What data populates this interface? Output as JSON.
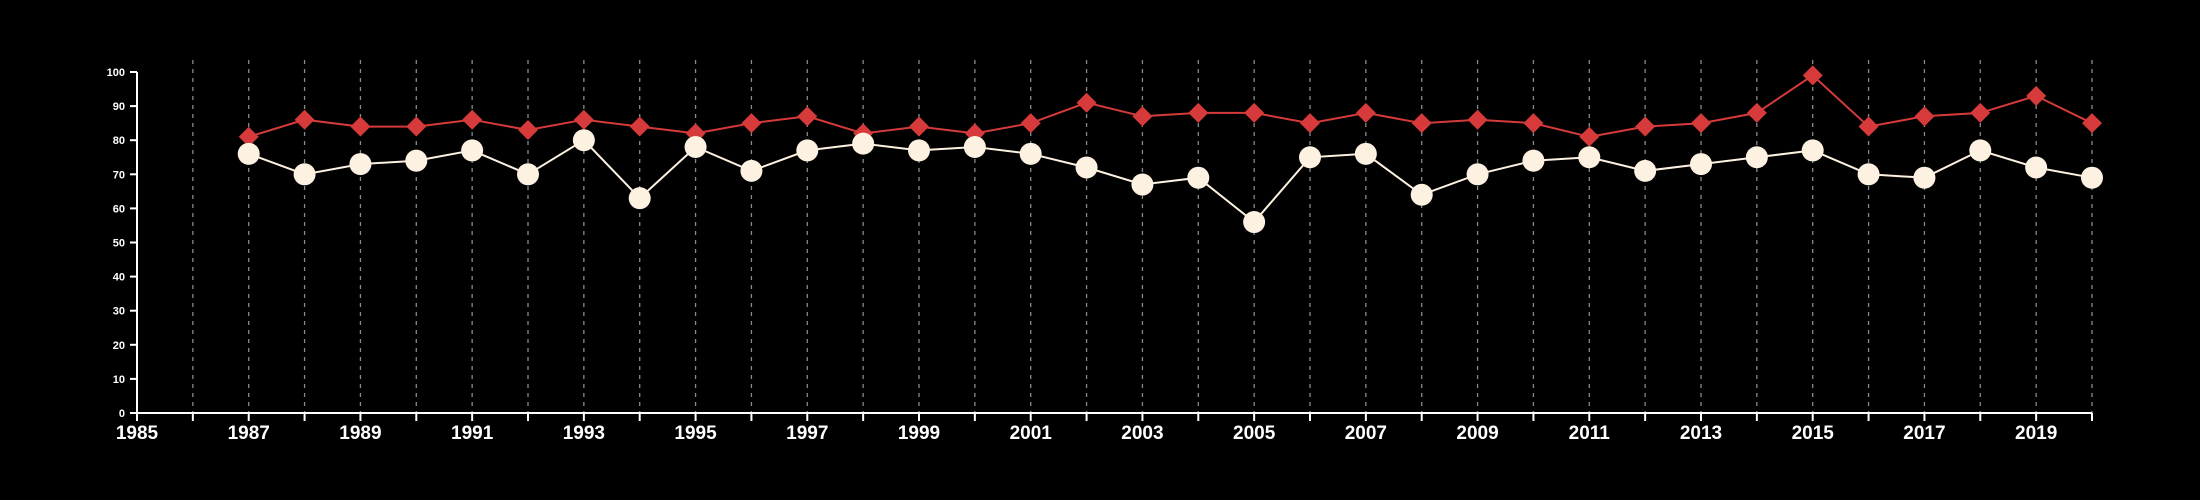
{
  "chart_data": {
    "type": "line",
    "title": "",
    "xlabel": "",
    "ylabel": "",
    "x": [
      1987,
      1988,
      1989,
      1990,
      1991,
      1992,
      1993,
      1994,
      1995,
      1996,
      1997,
      1998,
      1999,
      2000,
      2001,
      2002,
      2003,
      2004,
      2005,
      2006,
      2007,
      2008,
      2009,
      2010,
      2011,
      2012,
      2013,
      2014,
      2015,
      2016,
      2017,
      2018,
      2019,
      2020
    ],
    "series": [
      {
        "color": "#d63a3a",
        "marker": "diamond",
        "values": [
          81,
          86,
          84,
          84,
          86,
          83,
          86,
          84,
          82,
          85,
          87,
          82,
          84,
          82,
          85,
          91,
          87,
          88,
          88,
          85,
          88,
          85,
          86,
          85,
          81,
          84,
          85,
          88,
          99,
          84,
          87,
          88,
          93,
          85
        ]
      },
      {
        "color": "#fdf1e1",
        "marker": "circle",
        "values": [
          76,
          70,
          73,
          74,
          77,
          70,
          80,
          63,
          78,
          71,
          77,
          79,
          77,
          78,
          76,
          72,
          67,
          69,
          56,
          75,
          76,
          64,
          70,
          74,
          75,
          71,
          73,
          75,
          77,
          70,
          69,
          77,
          72,
          69
        ]
      }
    ],
    "xlim": [
      1985,
      2020
    ],
    "ylim": [
      0,
      100
    ],
    "x_tick_labels": [
      "1985",
      "1987",
      "1989",
      "1991",
      "1993",
      "1995",
      "1997",
      "1999",
      "2001",
      "2003",
      "2005",
      "2007",
      "2009",
      "2011",
      "2013",
      "2015",
      "2017",
      "2019"
    ],
    "y_tick_labels": [
      "0",
      "10",
      "20",
      "30",
      "40",
      "50",
      "60",
      "70",
      "80",
      "90",
      "100"
    ],
    "grid": "vertical dashed lines at each year",
    "legend": "none",
    "colors": {
      "background": "#000000",
      "axis": "#ffffff",
      "grid": "#8a8a8a"
    }
  }
}
